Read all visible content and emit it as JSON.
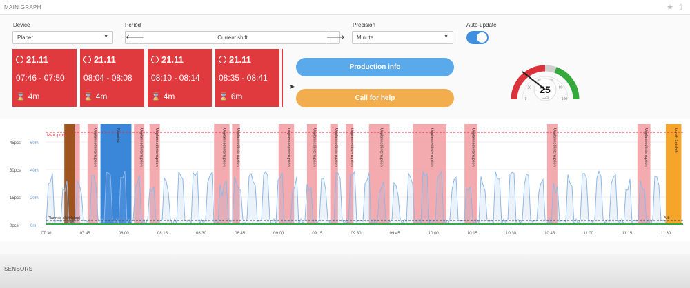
{
  "header": {
    "title": "MAIN GRAPH",
    "icons": [
      "star-icon",
      "up-arrow-icon"
    ]
  },
  "controls": {
    "device": {
      "label": "Device",
      "value": "Planer"
    },
    "period": {
      "label": "Period",
      "value": "Current shift"
    },
    "precision": {
      "label": "Precision",
      "value": "Minute"
    },
    "auto_update": {
      "label": "Auto-update",
      "on": true
    }
  },
  "stops": [
    {
      "date": "21.11",
      "time": "07:46 - 07:50",
      "duration": "4m"
    },
    {
      "date": "21.11",
      "time": "08:04 - 08:08",
      "duration": "4m"
    },
    {
      "date": "21.11",
      "time": "08:10 - 08:14",
      "duration": "4m"
    },
    {
      "date": "21.11",
      "time": "08:35 - 08:41",
      "duration": "6m"
    }
  ],
  "buttons": {
    "production_info": "Production info",
    "call_for_help": "Call for help"
  },
  "gauge": {
    "value": 25,
    "unit": "CGS",
    "ticks": [
      "0",
      "20",
      "40",
      "60",
      "80",
      "100"
    ],
    "colors": {
      "red": "#d9323a",
      "green": "#35a93c"
    }
  },
  "chart_data": {
    "type": "area",
    "x_ticks": [
      "07:30",
      "07:45",
      "08:00",
      "08:15",
      "08:30",
      "08:45",
      "09:00",
      "09:15",
      "09:30",
      "09:45",
      "10:00",
      "10:15",
      "10:30",
      "10:45",
      "11:00",
      "11:15",
      "11:30"
    ],
    "y_ticks_pcs": [
      "0pcs",
      "15pcs",
      "30pcs",
      "45pcs"
    ],
    "y_ticks_min": [
      "0m",
      "20m",
      "40m",
      "60m"
    ],
    "max_label": "Max. prod.",
    "series_color": "#8fb8e6",
    "events": [
      {
        "start": "07:37",
        "end": "07:41",
        "color": "#9a4a12",
        "label": ""
      },
      {
        "start": "07:41",
        "end": "07:43",
        "color": "#f2a6ab",
        "label": ""
      },
      {
        "start": "07:46",
        "end": "07:50",
        "color": "#f2a6ab",
        "label": "Unplanned interruption"
      },
      {
        "start": "07:51",
        "end": "08:03",
        "color": "#2f7fd6",
        "label": "Running"
      },
      {
        "start": "08:04",
        "end": "08:08",
        "color": "#f2a6ab",
        "label": "Unplanned interruption"
      },
      {
        "start": "08:10",
        "end": "08:14",
        "color": "#f2a6ab",
        "label": "Unplanned interruption"
      },
      {
        "start": "08:35",
        "end": "08:41",
        "color": "#f2a6ab",
        "label": "Unplanned interruption"
      },
      {
        "start": "08:42",
        "end": "08:45",
        "color": "#f2a6ab",
        "label": "Unplanned interruption"
      },
      {
        "start": "09:00",
        "end": "09:06",
        "color": "#f2a6ab",
        "label": "Unplanned interruption"
      },
      {
        "start": "09:11",
        "end": "09:15",
        "color": "#f2a6ab",
        "label": "Unplanned interruption"
      },
      {
        "start": "09:20",
        "end": "09:23",
        "color": "#f2a6ab",
        "label": "Unplanned interruption"
      },
      {
        "start": "09:26",
        "end": "09:29",
        "color": "#f2a6ab",
        "label": "Unplanned interruption"
      },
      {
        "start": "09:35",
        "end": "09:43",
        "color": "#f2a6ab",
        "label": "Unplanned interruption"
      },
      {
        "start": "09:52",
        "end": "10:05",
        "color": "#f2a6ab",
        "label": "Unplanned interruption"
      },
      {
        "start": "10:12",
        "end": "10:17",
        "color": "#f2a6ab",
        "label": "Unplanned interruption"
      },
      {
        "start": "10:44",
        "end": "10:48",
        "color": "#f2a6ab",
        "label": "Unplanned interruption"
      },
      {
        "start": "11:19",
        "end": "11:24",
        "color": "#f2a6ab",
        "label": "Unplanned interruption"
      },
      {
        "start": "11:30",
        "end": "11:36",
        "color": "#f5a020",
        "label": "Lunch 1st shift"
      }
    ],
    "bottom_labels": [
      "Planned shift (stop)",
      "Arb"
    ]
  },
  "footer": {
    "title": "SENSORS"
  }
}
